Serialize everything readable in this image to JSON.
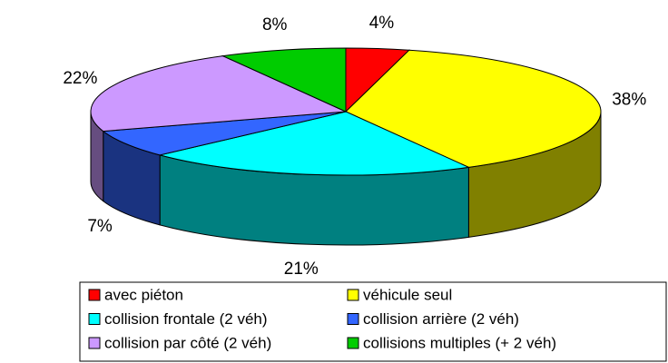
{
  "chart_data": {
    "type": "pie",
    "categories": [
      "avec piéton",
      "véhicule seul",
      "collision frontale (2 véh)",
      "collision arrière (2 véh)",
      "collision par côté (2 véh)",
      "collisions multiples (+ 2 véh)"
    ],
    "values": [
      4,
      38,
      21,
      7,
      22,
      8
    ],
    "value_labels": [
      "4%",
      "38%",
      "21%",
      "7%",
      "22%",
      "8%"
    ],
    "colors": [
      "#ff0000",
      "#ffff00",
      "#00ffff",
      "#3366ff",
      "#cc99ff",
      "#00cc00"
    ],
    "legend": "bottom"
  }
}
